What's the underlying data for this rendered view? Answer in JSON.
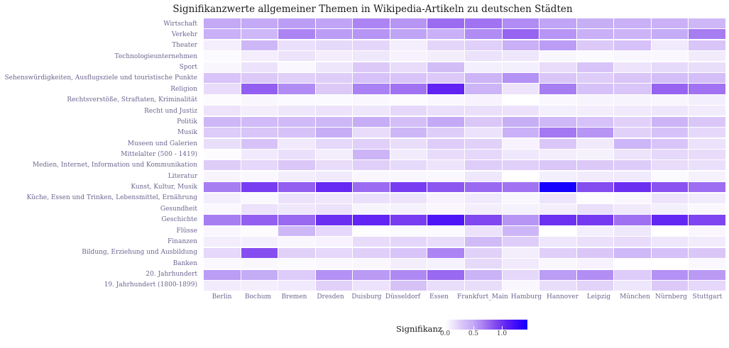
{
  "figure": {
    "background": "#ffffff",
    "title_color": "#1a1a1a",
    "axis_text_color": "#6f6590",
    "tick_text_color": "#3d3d3d"
  },
  "chart_data": {
    "type": "heatmap",
    "title": "Signifikanzwerte allgemeiner Themen in Wikipedia-Artikeln zu deutschen Städten",
    "legend_title": "Signifikanz",
    "legend_position": "bottom",
    "grid": "off",
    "scale_min": 0.0,
    "scale_max": 1.45,
    "legend_ticks": [
      {
        "label": "0.0",
        "value": 0.0
      },
      {
        "label": "0.5",
        "value": 0.5
      },
      {
        "label": "1.0",
        "value": 1.0
      }
    ],
    "colormap_stops": [
      {
        "value": 0.0,
        "color": "#ffffff"
      },
      {
        "value": 0.15,
        "color": "#ede4fb"
      },
      {
        "value": 0.3,
        "color": "#d9c5f8"
      },
      {
        "value": 0.5,
        "color": "#c3a9f6"
      },
      {
        "value": 0.7,
        "color": "#a478f2"
      },
      {
        "value": 0.9,
        "color": "#8147f0"
      },
      {
        "value": 1.1,
        "color": "#5c1ff4"
      },
      {
        "value": 1.3,
        "color": "#3505fb"
      },
      {
        "value": 1.45,
        "color": "#0d00fe"
      }
    ],
    "columns": [
      "Berlin",
      "Bochum",
      "Bremen",
      "Dresden",
      "Duisburg",
      "Düsseldorf",
      "Essen",
      "Frankfurt_Main",
      "Hamburg",
      "Hannover",
      "Leipzig",
      "München",
      "Nürnberg",
      "Stuttgart"
    ],
    "rows": [
      "Wirtschaft",
      "Verkehr",
      "Theater",
      "Technologieunternehmen",
      "Sport",
      "Sehenswürdigkeiten, Ausflugsziele und touristische Punkte",
      "Religion",
      "Rechtsverstöße, Straftaten, Kriminalität",
      "Recht und Justiz",
      "Politik",
      "Musik",
      "Museen und Galerien",
      "Mittelalter (500 - 1419)",
      "Medien, Internet, Information und Kommunikation",
      "Literatur",
      "Kunst, Kultur, Musik",
      "Küche, Essen und Trinken, Lebensmittel, Ernährung",
      "Gesundheit",
      "Geschichte",
      "Flüsse",
      "Finanzen",
      "Bildung, Erziehung und Ausbildung",
      "Banken",
      "20. Jahrhundert",
      "19. Jahrhundert (1800-1899)"
    ],
    "values": [
      [
        0.5,
        0.5,
        0.55,
        0.52,
        0.65,
        0.58,
        0.75,
        0.72,
        0.62,
        0.52,
        0.46,
        0.45,
        0.44,
        0.4
      ],
      [
        0.45,
        0.4,
        0.65,
        0.55,
        0.58,
        0.52,
        0.45,
        0.62,
        0.78,
        0.58,
        0.45,
        0.42,
        0.48,
        0.68
      ],
      [
        0.1,
        0.4,
        0.17,
        0.2,
        0.22,
        0.1,
        0.22,
        0.25,
        0.45,
        0.55,
        0.28,
        0.33,
        0.12,
        0.3
      ],
      [
        0.03,
        0.1,
        0.15,
        0.1,
        0.13,
        0.07,
        0.1,
        0.16,
        0.14,
        0.05,
        0.03,
        0.05,
        0.04,
        0.11
      ],
      [
        0.05,
        0.16,
        0.04,
        0.14,
        0.28,
        0.19,
        0.36,
        0.09,
        0.09,
        0.19,
        0.31,
        0.15,
        0.2,
        0.18
      ],
      [
        0.31,
        0.28,
        0.25,
        0.26,
        0.33,
        0.31,
        0.28,
        0.42,
        0.6,
        0.3,
        0.26,
        0.3,
        0.35,
        0.35
      ],
      [
        0.19,
        0.8,
        0.62,
        0.28,
        0.66,
        0.72,
        1.08,
        0.42,
        0.15,
        0.68,
        0.33,
        0.3,
        0.78,
        0.72
      ],
      [
        0.02,
        0.05,
        0.03,
        0.03,
        0.04,
        0.02,
        0.04,
        0.07,
        0.0,
        0.04,
        0.06,
        0.06,
        0.05,
        0.09
      ],
      [
        0.15,
        0.1,
        0.14,
        0.16,
        0.14,
        0.21,
        0.17,
        0.17,
        0.16,
        0.09,
        0.1,
        0.12,
        0.14,
        0.11
      ],
      [
        0.4,
        0.38,
        0.38,
        0.4,
        0.47,
        0.35,
        0.5,
        0.29,
        0.46,
        0.39,
        0.33,
        0.24,
        0.42,
        0.29
      ],
      [
        0.27,
        0.3,
        0.32,
        0.47,
        0.19,
        0.4,
        0.26,
        0.16,
        0.44,
        0.7,
        0.58,
        0.24,
        0.32,
        0.21
      ],
      [
        0.18,
        0.32,
        0.12,
        0.21,
        0.25,
        0.18,
        0.26,
        0.24,
        0.07,
        0.29,
        0.12,
        0.41,
        0.31,
        0.16
      ],
      [
        0.02,
        0.12,
        0.17,
        0.1,
        0.42,
        0.11,
        0.19,
        0.21,
        0.13,
        0.1,
        0.08,
        0.15,
        0.21,
        0.19
      ],
      [
        0.26,
        0.21,
        0.29,
        0.19,
        0.25,
        0.2,
        0.15,
        0.26,
        0.25,
        0.29,
        0.28,
        0.27,
        0.19,
        0.17
      ],
      [
        0.06,
        0.04,
        0.1,
        0.12,
        0.05,
        0.05,
        0.04,
        0.13,
        0.0,
        0.09,
        0.11,
        0.12,
        0.03,
        0.08
      ],
      [
        0.68,
        0.95,
        0.8,
        1.05,
        0.75,
        0.95,
        0.84,
        0.76,
        0.72,
        1.42,
        0.88,
        1.02,
        0.85,
        0.74
      ],
      [
        0.1,
        0.04,
        0.16,
        0.14,
        0.17,
        0.15,
        0.07,
        0.12,
        0.05,
        0.15,
        0.02,
        0.05,
        0.15,
        0.11
      ],
      [
        0.04,
        0.16,
        0.13,
        0.16,
        0.06,
        0.08,
        0.05,
        0.1,
        0.08,
        0.1,
        0.17,
        0.12,
        0.09,
        0.04
      ],
      [
        0.68,
        0.8,
        0.76,
        1.02,
        1.07,
        0.95,
        1.17,
        0.9,
        0.58,
        1.01,
        0.97,
        0.73,
        1.06,
        0.91
      ],
      [
        0.05,
        0.02,
        0.4,
        0.21,
        0.01,
        0.03,
        0.03,
        0.16,
        0.41,
        0.0,
        0.09,
        0.13,
        0.0,
        0.05
      ],
      [
        0.1,
        0.09,
        0.05,
        0.07,
        0.19,
        0.22,
        0.18,
        0.37,
        0.26,
        0.14,
        0.17,
        0.19,
        0.14,
        0.11
      ],
      [
        0.21,
        0.87,
        0.24,
        0.21,
        0.25,
        0.31,
        0.65,
        0.24,
        0.1,
        0.25,
        0.29,
        0.39,
        0.33,
        0.29
      ],
      [
        0.04,
        0.04,
        0.03,
        0.04,
        0.05,
        0.1,
        0.08,
        0.2,
        0.12,
        0.05,
        0.07,
        0.01,
        0.0,
        0.04
      ],
      [
        0.55,
        0.48,
        0.27,
        0.6,
        0.56,
        0.63,
        0.76,
        0.43,
        0.21,
        0.55,
        0.61,
        0.27,
        0.6,
        0.56
      ],
      [
        0.11,
        0.1,
        0.12,
        0.24,
        0.16,
        0.32,
        0.18,
        0.18,
        0.05,
        0.18,
        0.23,
        0.14,
        0.28,
        0.21
      ]
    ]
  }
}
